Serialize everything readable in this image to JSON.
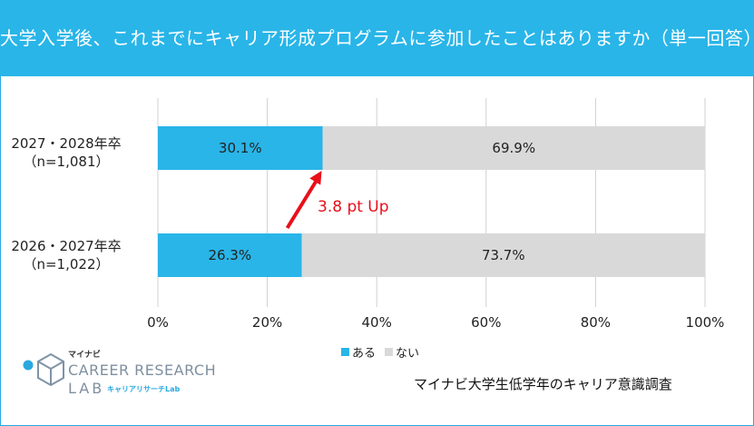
{
  "title": "大学入学後、これまでにキャリア形成プログラムに参加したことはありますか（単一回答）",
  "chart_data": {
    "type": "bar",
    "stacked": true,
    "orientation": "horizontal",
    "categories": [
      "2027・2028年卒（n=1,081）",
      "2026・2027年卒（n=1,022）"
    ],
    "category_lines": [
      [
        "2027・2028年卒",
        "（n=1,081）"
      ],
      [
        "2026・2027年卒",
        "（n=1,022）"
      ]
    ],
    "series": [
      {
        "name": "ある",
        "values": [
          30.1,
          26.3
        ],
        "labels": [
          "30.1%",
          "26.3%"
        ],
        "color": "#29b5e8"
      },
      {
        "name": "ない",
        "values": [
          69.9,
          73.7
        ],
        "labels": [
          "69.9%",
          "73.7%"
        ],
        "color": "#d9d9d9"
      }
    ],
    "xlim": [
      0,
      100
    ],
    "xticks": [
      "0%",
      "20%",
      "40%",
      "60%",
      "80%",
      "100%"
    ],
    "grid": true,
    "legend": "bottom",
    "annotation": {
      "text": "3.8 pt Up",
      "color": "#e8101a"
    }
  },
  "logo": {
    "small": "マイナビ",
    "line1": "CAREER RESEARCH",
    "line2": "LAB",
    "sub": "キャリアリサーチLab"
  },
  "source": "マイナビ大学生低学年のキャリア意識調査"
}
